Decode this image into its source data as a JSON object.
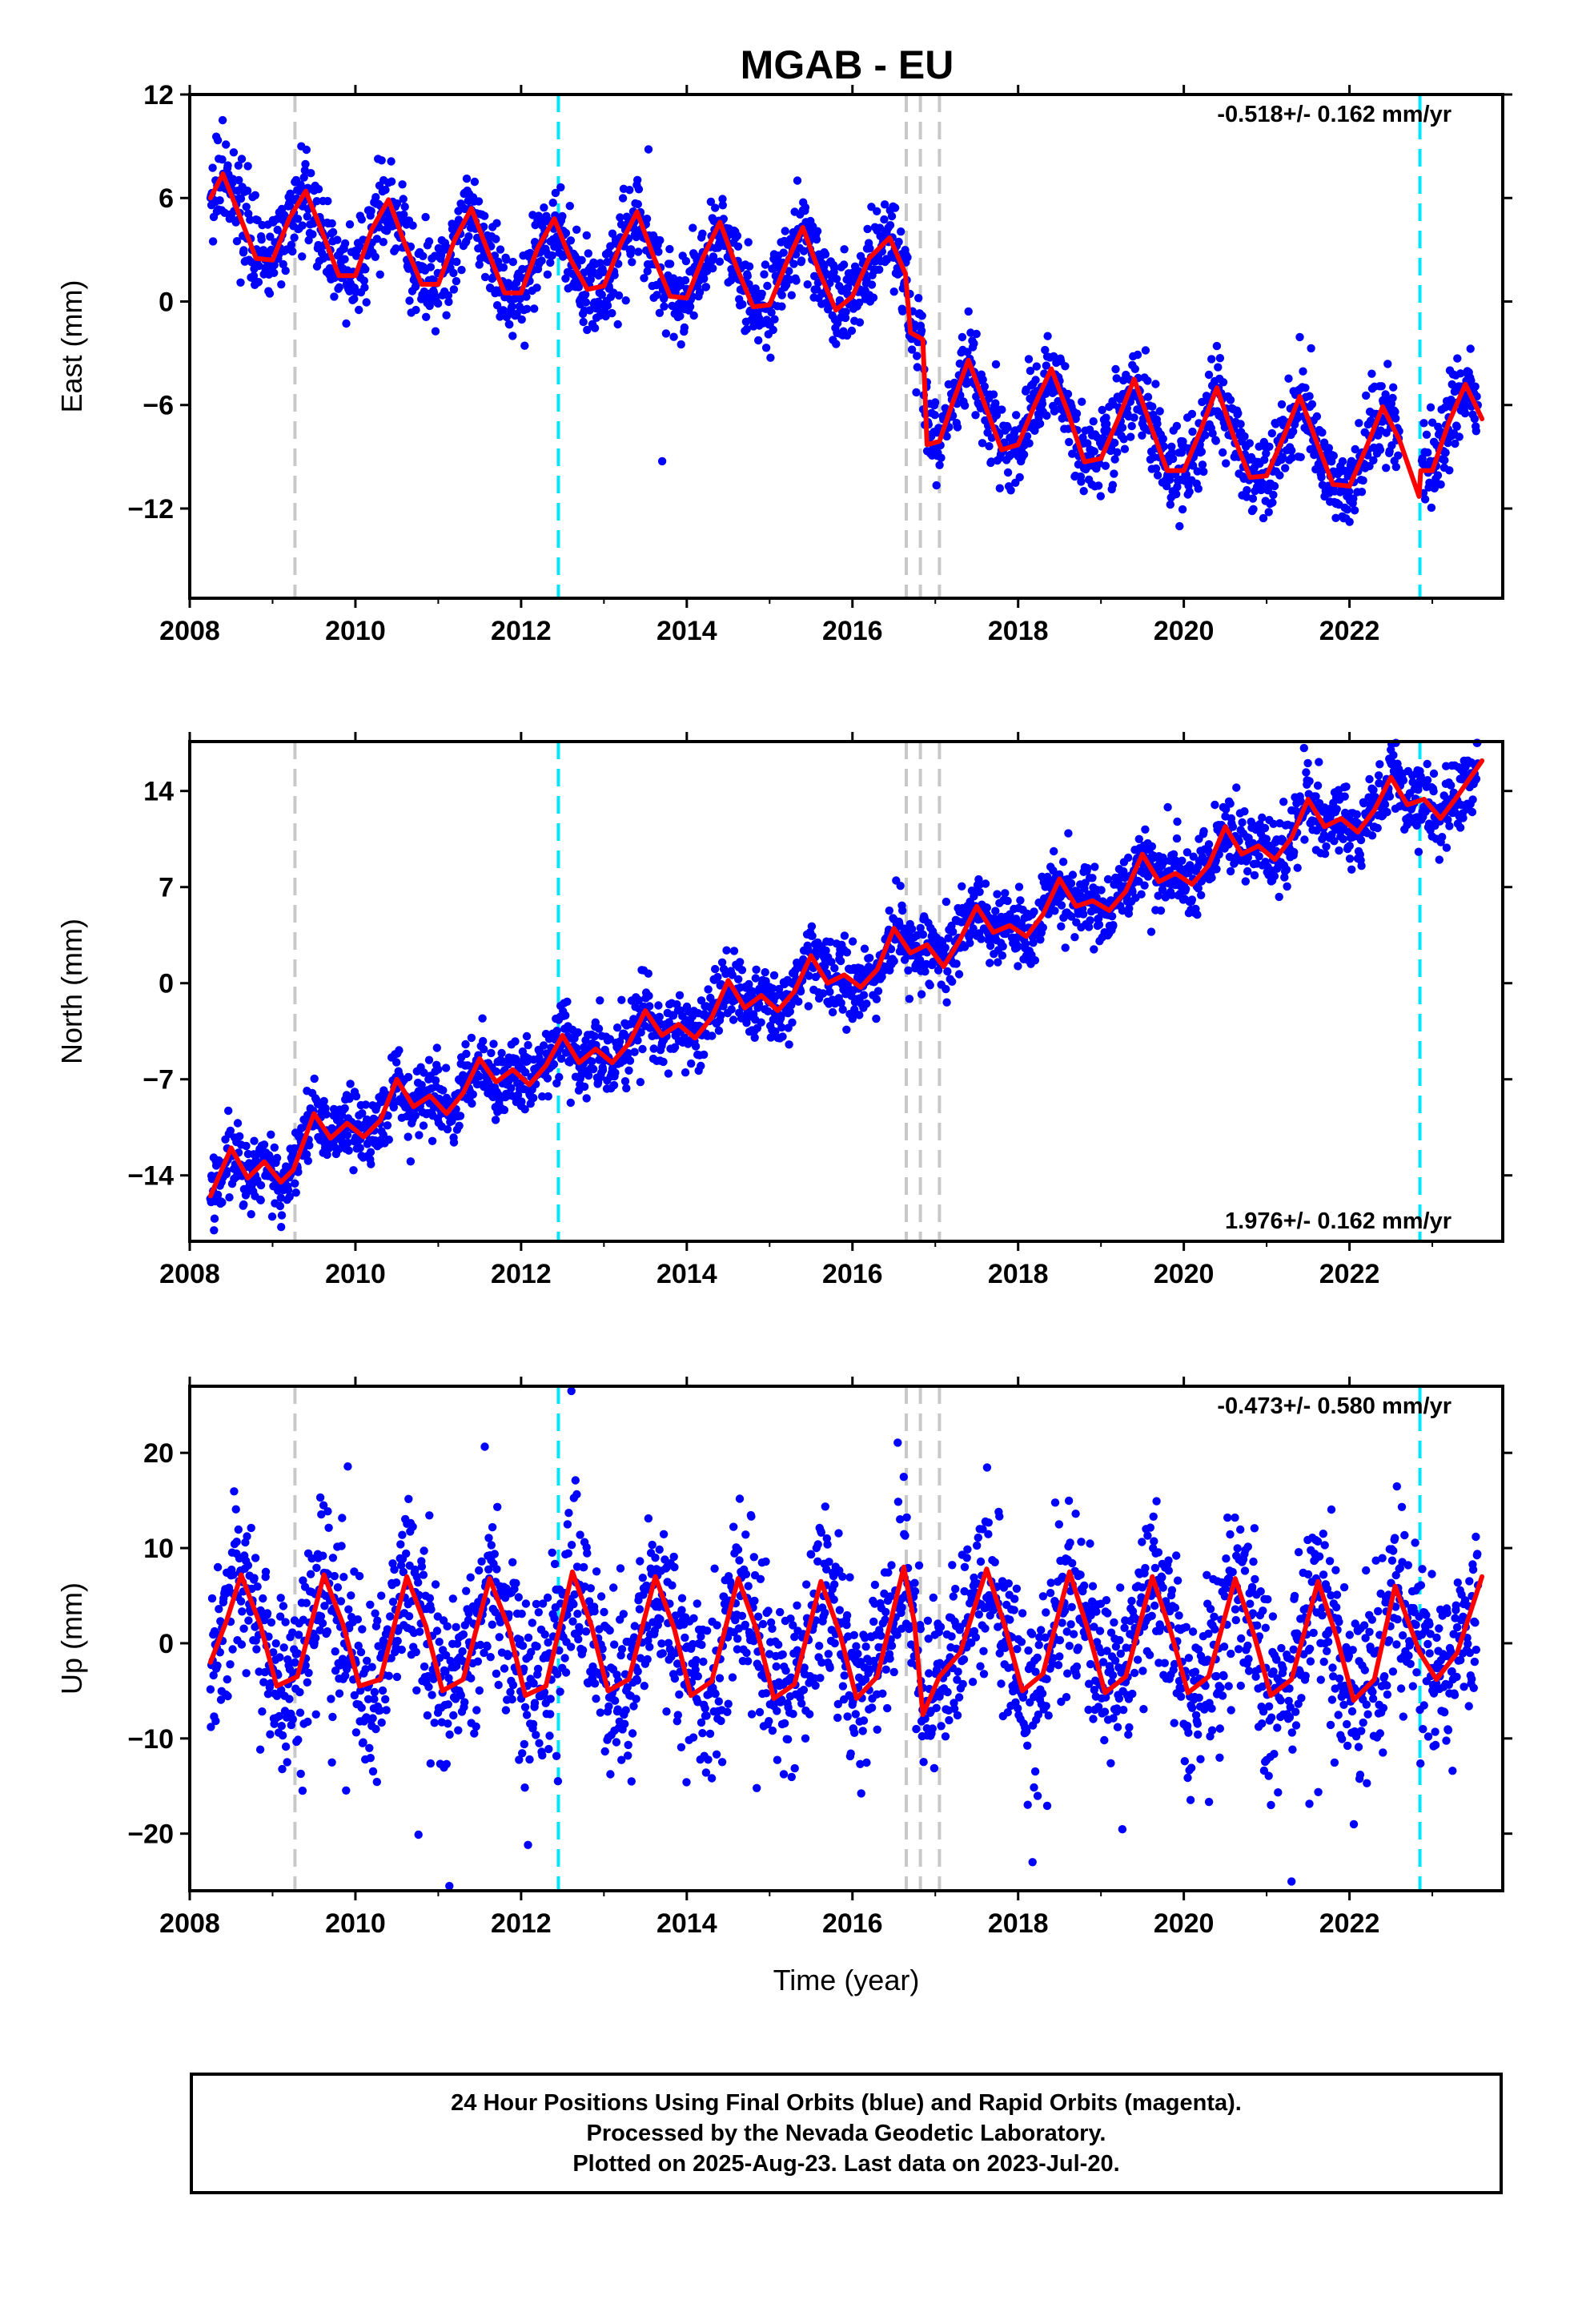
{
  "title": "MGAB - EU",
  "footer": {
    "lines": [
      "24 Hour Positions Using Final Orbits (blue) and Rapid Orbits (magenta).",
      "Processed by the Nevada Geodetic Laboratory.",
      "Plotted on 2025-Aug-23. Last data on 2023-Jul-20."
    ]
  },
  "colors": {
    "points": "#0000ff",
    "fit": "#ff0000",
    "equipment_change": "#c8c8c8",
    "earthquake": "#00e5ff",
    "frame": "#000000"
  },
  "chart_data": [
    {
      "type": "scatter",
      "panel": "east",
      "ylabel": "East (mm)",
      "xlabel": "",
      "xlim": [
        2008.0,
        2023.85
      ],
      "ylim": [
        -17.2,
        12.0
      ],
      "xticks": [
        "2008",
        "2010",
        "2012",
        "2014",
        "2016",
        "2018",
        "2020",
        "2022"
      ],
      "yticks": [
        "12",
        "6",
        "0",
        "-6",
        "-12"
      ],
      "yticks_values": [
        12,
        6,
        0,
        -6,
        -12
      ],
      "rate_label": "-0.518+/- 0.162 mm/yr",
      "rate_position": "top-right",
      "vertical_lines": {
        "equipment_change": [
          2009.27,
          2016.65,
          2016.82,
          2017.05
        ],
        "earthquake": [
          2012.45,
          2022.85
        ]
      },
      "fit": {
        "x": [
          2008.25,
          2008.4,
          2008.6,
          2008.8,
          2009.0,
          2009.2,
          2009.4,
          2009.6,
          2009.8,
          2010.0,
          2010.2,
          2010.4,
          2010.6,
          2010.8,
          2011.0,
          2011.2,
          2011.4,
          2011.6,
          2011.8,
          2012.0,
          2012.2,
          2012.4,
          2012.6,
          2012.8,
          2013.0,
          2013.2,
          2013.4,
          2013.6,
          2013.8,
          2014.0,
          2014.2,
          2014.4,
          2014.6,
          2014.8,
          2015.0,
          2015.2,
          2015.4,
          2015.6,
          2015.8,
          2016.0,
          2016.2,
          2016.45,
          2016.64,
          2016.7,
          2016.85,
          2016.9,
          2017.05,
          2017.2,
          2017.4,
          2017.6,
          2017.8,
          2018.0,
          2018.2,
          2018.4,
          2018.6,
          2018.8,
          2019.0,
          2019.2,
          2019.4,
          2019.6,
          2019.8,
          2020.0,
          2020.2,
          2020.4,
          2020.6,
          2020.8,
          2021.0,
          2021.2,
          2021.4,
          2021.6,
          2021.8,
          2022.0,
          2022.2,
          2022.4,
          2022.6,
          2022.84,
          2022.86,
          2023.0,
          2023.2,
          2023.4,
          2023.6
        ],
        "y": [
          6.0,
          7.4,
          5.0,
          2.5,
          2.4,
          4.8,
          6.4,
          4.0,
          1.5,
          1.5,
          4.2,
          5.9,
          3.3,
          1.0,
          1.0,
          3.6,
          5.4,
          2.9,
          0.5,
          0.5,
          3.1,
          4.8,
          2.4,
          0.7,
          0.9,
          3.3,
          5.2,
          2.6,
          0.3,
          0.2,
          2.6,
          4.6,
          2.0,
          -0.3,
          -0.2,
          2.2,
          4.3,
          1.7,
          -0.5,
          0.3,
          2.5,
          3.7,
          1.6,
          -1.8,
          -2.2,
          -8.3,
          -8.1,
          -6.0,
          -3.4,
          -6.0,
          -8.6,
          -8.3,
          -6.0,
          -3.9,
          -6.4,
          -9.3,
          -9.1,
          -6.9,
          -4.5,
          -7.2,
          -9.8,
          -9.8,
          -7.5,
          -5.0,
          -7.8,
          -10.2,
          -10.1,
          -7.9,
          -5.5,
          -8.1,
          -10.6,
          -10.7,
          -8.5,
          -6.1,
          -8.0,
          -11.3,
          -9.8,
          -9.8,
          -7.0,
          -4.8,
          -6.8
        ]
      },
      "scatter": {
        "x_start": 2008.25,
        "x_end": 2023.55,
        "n": 2400,
        "jumps": [
          {
            "at": 2016.72,
            "dy": -10.0
          }
        ],
        "ymin": -16.5,
        "ymax": 11.5
      }
    },
    {
      "type": "scatter",
      "panel": "north",
      "ylabel": "North (mm)",
      "xlabel": "",
      "xlim": [
        2008.0,
        2023.85
      ],
      "ylim": [
        -18.8,
        17.6
      ],
      "xticks": [
        "2008",
        "2010",
        "2012",
        "2014",
        "2016",
        "2018",
        "2020",
        "2022"
      ],
      "yticks": [
        "14",
        "7",
        "0",
        "-7",
        "-14"
      ],
      "yticks_values": [
        14,
        7,
        0,
        -7,
        -14
      ],
      "rate_label": "1.976+/- 0.162 mm/yr",
      "rate_position": "bottom-right",
      "vertical_lines": {
        "equipment_change": [
          2009.27,
          2016.65,
          2016.82,
          2017.05
        ],
        "earthquake": [
          2012.45,
          2022.85
        ]
      },
      "fit": {
        "x": [
          2008.25,
          2008.5,
          2008.7,
          2008.9,
          2009.1,
          2009.25,
          2009.5,
          2009.7,
          2009.9,
          2010.1,
          2010.3,
          2010.5,
          2010.7,
          2010.9,
          2011.1,
          2011.3,
          2011.5,
          2011.7,
          2011.9,
          2012.1,
          2012.3,
          2012.5,
          2012.7,
          2012.9,
          2013.1,
          2013.3,
          2013.5,
          2013.7,
          2013.9,
          2014.1,
          2014.3,
          2014.5,
          2014.7,
          2014.9,
          2015.1,
          2015.3,
          2015.5,
          2015.7,
          2015.9,
          2016.1,
          2016.3,
          2016.5,
          2016.7,
          2016.9,
          2017.1,
          2017.3,
          2017.5,
          2017.7,
          2017.9,
          2018.1,
          2018.3,
          2018.5,
          2018.7,
          2018.9,
          2019.1,
          2019.3,
          2019.5,
          2019.7,
          2019.9,
          2020.1,
          2020.3,
          2020.5,
          2020.7,
          2020.9,
          2021.1,
          2021.3,
          2021.5,
          2021.7,
          2021.9,
          2022.1,
          2022.3,
          2022.5,
          2022.7,
          2022.9,
          2023.1,
          2023.3,
          2023.6
        ],
        "y": [
          -15.5,
          -12.0,
          -14.2,
          -13.0,
          -14.5,
          -13.6,
          -9.5,
          -11.3,
          -10.2,
          -11.2,
          -10.0,
          -7.0,
          -9.0,
          -8.2,
          -9.5,
          -8.0,
          -5.5,
          -7.2,
          -6.3,
          -7.4,
          -6.0,
          -3.8,
          -5.8,
          -4.8,
          -5.8,
          -4.4,
          -2.0,
          -3.8,
          -3.0,
          -4.0,
          -2.5,
          0.2,
          -1.8,
          -0.9,
          -2.0,
          -0.6,
          2.0,
          0.0,
          0.6,
          -0.3,
          1.0,
          4.0,
          2.2,
          2.8,
          1.2,
          3.2,
          5.6,
          3.7,
          4.2,
          3.4,
          5.0,
          7.6,
          5.6,
          6.0,
          5.3,
          6.7,
          9.4,
          7.4,
          8.0,
          7.2,
          8.6,
          11.4,
          9.4,
          10.0,
          9.0,
          10.6,
          13.4,
          11.4,
          12.0,
          11.0,
          12.6,
          15.0,
          13.0,
          13.4,
          12.0,
          13.6,
          16.2
        ]
      },
      "scatter": {
        "x_start": 2008.25,
        "x_end": 2023.55,
        "n": 2400,
        "jumps": [],
        "ymin": -18.0,
        "ymax": 17.5
      }
    },
    {
      "type": "scatter",
      "panel": "up",
      "ylabel": "Up (mm)",
      "xlabel": "Time (year)",
      "xlim": [
        2008.0,
        2023.85
      ],
      "ylim": [
        -26.0,
        27.0
      ],
      "xticks": [
        "2008",
        "2010",
        "2012",
        "2014",
        "2016",
        "2018",
        "2020",
        "2022"
      ],
      "yticks": [
        "20",
        "10",
        "0",
        "-10",
        "-20"
      ],
      "yticks_values": [
        20,
        10,
        0,
        -10,
        -20
      ],
      "rate_label": "-0.473+/- 0.580 mm/yr",
      "rate_position": "top-right",
      "vertical_lines": {
        "equipment_change": [
          2009.27,
          2016.65,
          2016.82,
          2017.05
        ],
        "earthquake": [
          2012.45,
          2022.85
        ]
      },
      "fit": {
        "x": [
          2008.25,
          2008.45,
          2008.62,
          2008.85,
          2009.05,
          2009.3,
          2009.62,
          2009.85,
          2010.05,
          2010.3,
          2010.62,
          2010.85,
          2011.05,
          2011.3,
          2011.62,
          2011.85,
          2012.05,
          2012.3,
          2012.62,
          2012.85,
          2013.05,
          2013.3,
          2013.62,
          2013.85,
          2014.05,
          2014.3,
          2014.62,
          2014.85,
          2015.05,
          2015.3,
          2015.62,
          2015.85,
          2016.05,
          2016.3,
          2016.62,
          2016.75,
          2016.85,
          2017.05,
          2017.3,
          2017.62,
          2017.85,
          2018.05,
          2018.3,
          2018.62,
          2018.85,
          2019.05,
          2019.3,
          2019.62,
          2019.85,
          2020.05,
          2020.3,
          2020.62,
          2020.85,
          2021.05,
          2021.3,
          2021.62,
          2021.85,
          2022.05,
          2022.3,
          2022.55,
          2022.85,
          2023.05,
          2023.3,
          2023.6
        ],
        "y": [
          -2.0,
          2.5,
          7.2,
          2.0,
          -4.5,
          -3.5,
          7.2,
          2.0,
          -4.5,
          -3.8,
          7.0,
          1.8,
          -5.0,
          -3.8,
          6.8,
          1.6,
          -5.5,
          -4.5,
          7.5,
          1.8,
          -5.0,
          -3.8,
          7.0,
          1.5,
          -5.5,
          -4.0,
          6.8,
          1.2,
          -5.8,
          -4.3,
          6.5,
          1.0,
          -5.8,
          -3.5,
          8.0,
          2.0,
          -7.5,
          -3.5,
          -1.0,
          7.8,
          1.5,
          -5.0,
          -3.2,
          7.5,
          1.2,
          -5.2,
          -3.5,
          7.0,
          1.0,
          -5.2,
          -3.5,
          6.8,
          0.8,
          -5.5,
          -3.8,
          6.5,
          0.5,
          -6.0,
          -3.8,
          6.0,
          -1.0,
          -3.8,
          -1.0,
          7.0
        ]
      },
      "scatter": {
        "x_start": 2008.25,
        "x_end": 2023.55,
        "n": 2400,
        "jumps": [],
        "ymin": -25.5,
        "ymax": 26.5
      }
    }
  ]
}
